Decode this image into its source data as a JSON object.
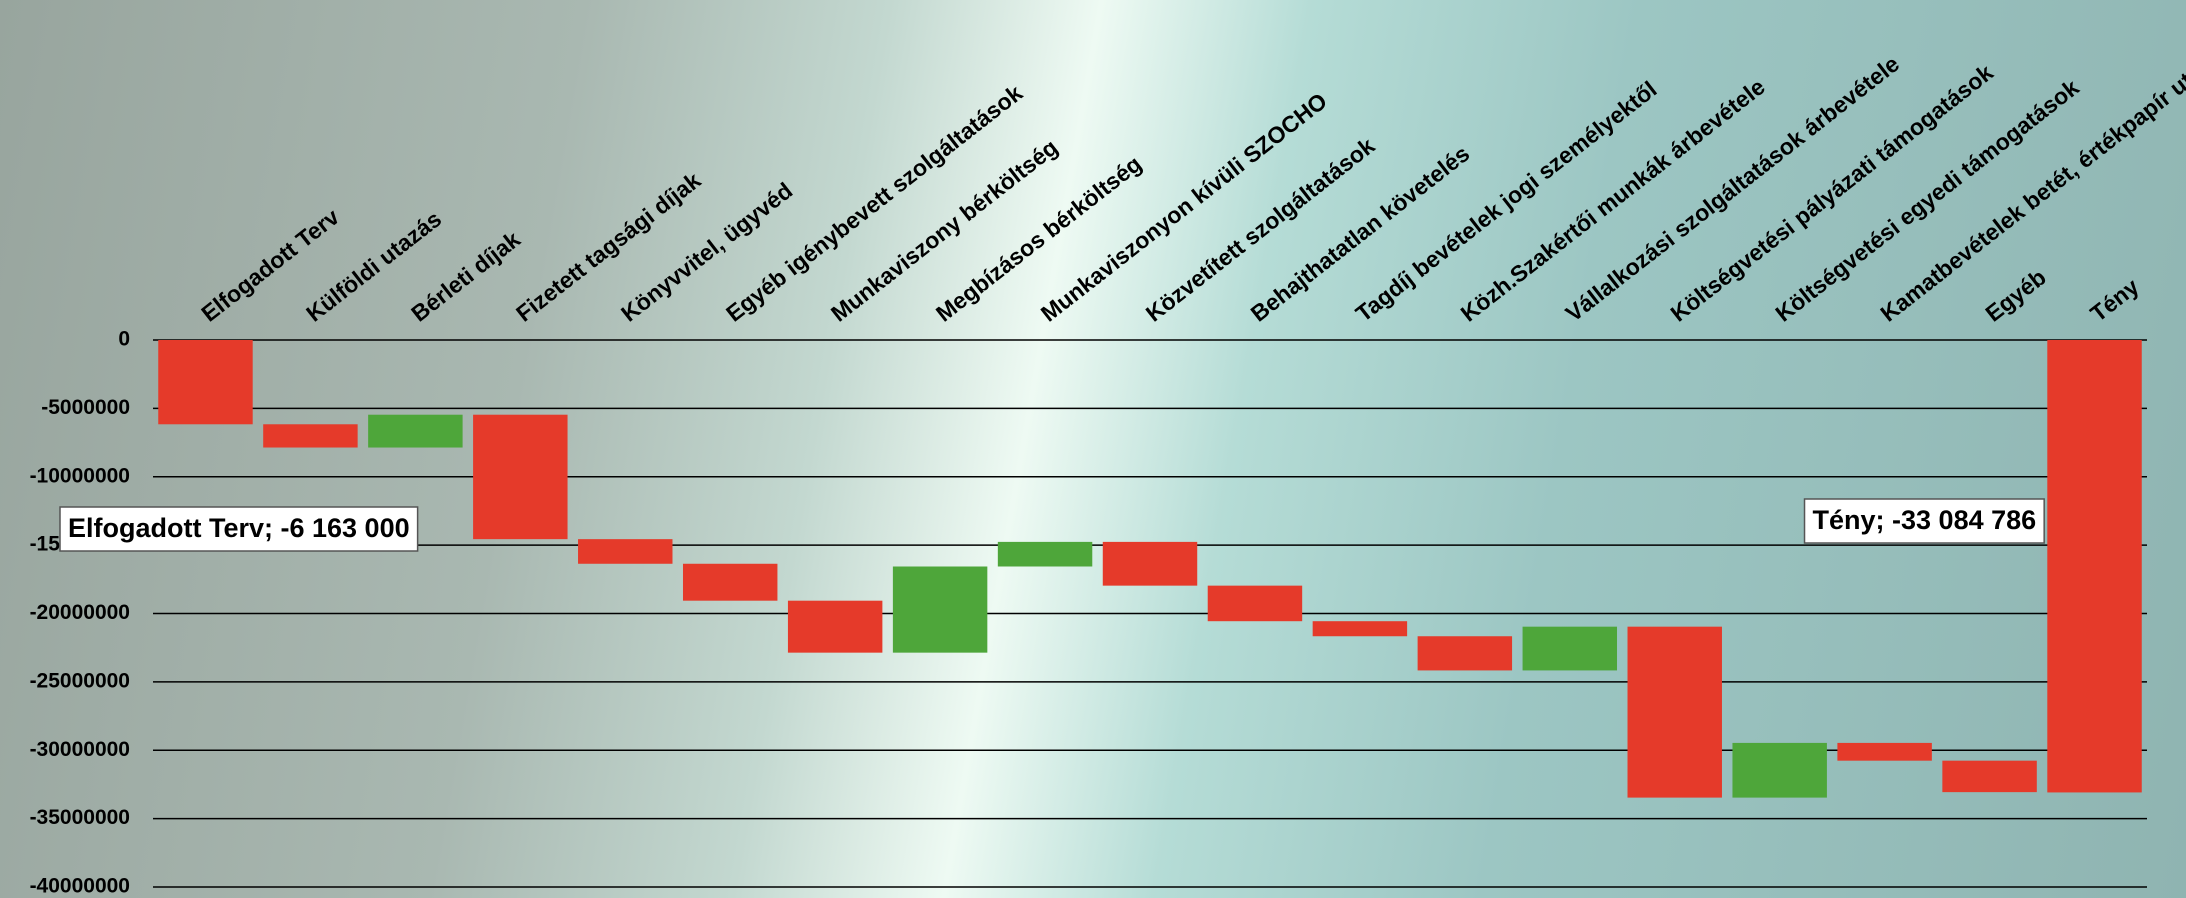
{
  "chart_data": {
    "type": "waterfall",
    "categories": [
      "Elfogadott Terv",
      "Külföldi utazás",
      "Bérleti díjak",
      "Fizetett tagsági díjak",
      "Könyvvitel, ügyvéd",
      "Egyéb igénybevett szolgáltatások",
      "Munkaviszony bérköltség",
      "Megbízásos bérköltség",
      "Munkaviszonyon kívüli SZOCHO",
      "Közvetített szolgáltatások",
      "Behajthatatlan követelés",
      "Tagdíj bevételek jogi személyektől",
      "Közh.Szakértői munkák árbevétele",
      "Vállalkozási szolgáltatások árbevétele",
      "Költségvetési pályázati támogatások",
      "Költségvetési egyedi támogatások",
      "Kamatbevételek betét, értékpapír után",
      "Egyéb",
      "Tény"
    ],
    "values": [
      -6163000,
      -1700000,
      2400000,
      -9100000,
      -1800000,
      -2700000,
      -3800000,
      6300000,
      1800000,
      -3200000,
      -2600000,
      -1100000,
      -2500000,
      3200000,
      -12500000,
      4000000,
      -1300000,
      -2300000,
      -33084786
    ],
    "measure": [
      "relative",
      "relative",
      "relative",
      "relative",
      "relative",
      "relative",
      "relative",
      "relative",
      "relative",
      "relative",
      "relative",
      "relative",
      "relative",
      "relative",
      "relative",
      "relative",
      "relative",
      "relative",
      "total"
    ],
    "value_labels": [
      "Elfogadott Terv; -6 163 000",
      null,
      null,
      null,
      null,
      null,
      null,
      null,
      null,
      null,
      null,
      null,
      null,
      null,
      null,
      null,
      null,
      null,
      "Tény; -33 084 786"
    ],
    "increase_color": "#4ea63a",
    "decrease_color": "#e53a2a",
    "ylim": [
      -40000000,
      0
    ],
    "yticks": [
      0,
      -5000000,
      -10000000,
      -15000000,
      -20000000,
      -25000000,
      -30000000,
      -35000000,
      -40000000
    ],
    "grid": true
  }
}
